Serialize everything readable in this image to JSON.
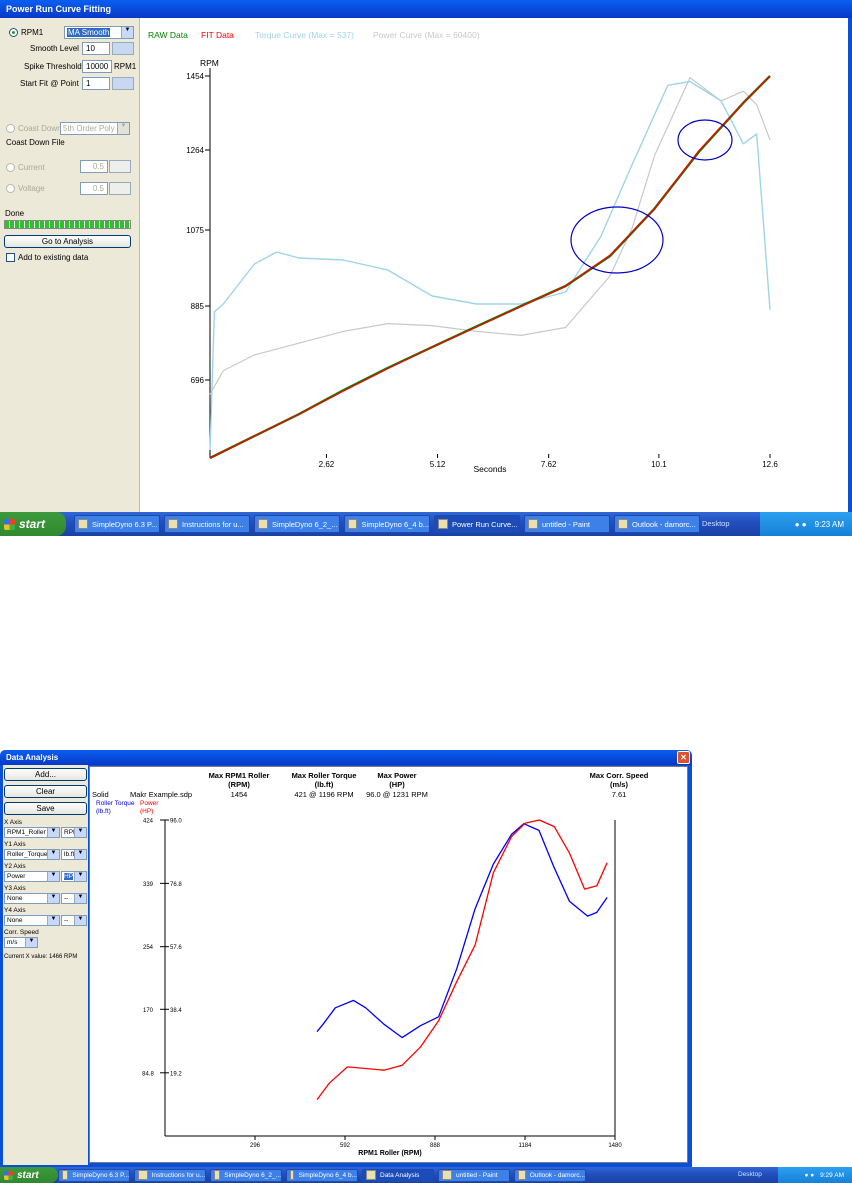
{
  "window1": {
    "title": "Power Run Curve Fitting",
    "rpm_label": "RPM1",
    "smoothing_select": "MA Smooth",
    "smooth_level_label": "Smooth Level",
    "smooth_level_value": "10",
    "spike_threshold_label": "Spike Threshold",
    "spike_threshold_value": "10000",
    "spike_threshold_unit": "RPM1",
    "start_fit_label": "Start Fit @ Point",
    "start_fit_value": "1",
    "coast_down_label": "Coast Down",
    "coast_down_select": "5th Order Poly",
    "coast_down_file_label": "Coast Down File",
    "current_label": "Current",
    "current_value": "0.5",
    "voltage_label": "Voltage",
    "voltage_value": "0.5",
    "status_text": "Done",
    "progress": 1.0,
    "go_button": "Go to Analysis",
    "add_existing_label": "Add to existing data",
    "legend_raw": "RAW Data",
    "legend_fit": "FIT Data",
    "legend_torque": "Torque Curve (Max = 537)",
    "legend_power": "Power Curve (Max = 60400)",
    "colors": {
      "raw": "#008000",
      "fit": "#ff0000",
      "torque": "#9fd4e8",
      "power": "#c8c8c8",
      "circle": "#0000cc"
    }
  },
  "taskbar1": {
    "start_label": "start",
    "items": [
      "SimpleDyno 6.3 P...",
      "Instructions for u...",
      "SimpleDyno 6_2_...",
      "SimpleDyno 6_4 b...",
      "Power Run Curve...",
      "untitled - Paint",
      "Outlook - damorc..."
    ],
    "active_index": 4,
    "desktop_label": "Desktop",
    "clock": "9:23 AM"
  },
  "window2": {
    "title": "Data Analysis",
    "buttons": {
      "add": "Add...",
      "clear": "Clear",
      "save": "Save"
    },
    "x_axis_label": "X Axis",
    "x_axis_select": "RPM1_Roller",
    "x_axis_unit": "RPM",
    "y1_axis_label": "Y1 Axis",
    "y1_axis_select": "Roller_Torque",
    "y1_axis_unit": "lb.ft",
    "y2_axis_label": "Y2 Axis",
    "y2_axis_select": "Power",
    "y2_axis_unit": "HP",
    "y3_axis_label": "Y3 Axis",
    "y3_axis_select": "None",
    "y3_axis_unit": "--",
    "y4_axis_label": "Y4 Axis",
    "y4_axis_select": "None",
    "y4_axis_unit": "--",
    "corr_speed_label": "Corr. Speed",
    "corr_speed_select": "m/s",
    "current_x_label": "Current X value:",
    "current_x_value": "1466 RPM",
    "table": {
      "col1_h1": "Max RPM1 Roller",
      "col1_h2": "(RPM)",
      "col1_v": "1454",
      "col2_h1": "Max Roller Torque",
      "col2_h2": "(lb.ft)",
      "col2_v": "421 @ 1196 RPM",
      "col3_h1": "Max Power",
      "col3_h2": "(HP)",
      "col3_v": "96.0 @ 1231 RPM",
      "col4_h1": "Max Corr. Speed",
      "col4_h2": "(m/s)",
      "col4_v": "7.61",
      "row_style": "Solid",
      "row_file": "Makr Example.sdp"
    },
    "y1_title": "Roller Torque",
    "y1_unit": "(lb.ft)",
    "y2_title": "Power",
    "y2_unit": "(HP)",
    "xlabel": "RPM1 Roller (RPM)",
    "colors": {
      "torque": "#0000ff",
      "power": "#ff0000"
    }
  },
  "taskbar2": {
    "start_label": "start",
    "items": [
      "SimpleDyno 6.3 P...",
      "Instructions for u...",
      "SimpleDyno 6_2_...",
      "SimpleDyno 6_4 b...",
      "Data Analysis",
      "untitled - Paint",
      "Outlook - damorc..."
    ],
    "active_index": 4,
    "desktop_label": "Desktop",
    "clock": "9:29 AM"
  },
  "chart_data": [
    {
      "type": "line",
      "title": "",
      "xlabel": "Seconds",
      "ylabel": "RPM",
      "xlim": [
        0,
        12.6
      ],
      "ylim": [
        500,
        1454
      ],
      "x_ticks": [
        "2.62",
        "5.12",
        "7.62",
        "10.1",
        "12.6"
      ],
      "y_ticks": [
        "1454",
        "1264",
        "1075",
        "885",
        "696"
      ],
      "series": [
        {
          "name": "RAW Data",
          "x": [
            0,
            1,
            2,
            3,
            4,
            5,
            6,
            7,
            8,
            9,
            10,
            11,
            12,
            12.6
          ],
          "y": [
            500,
            555,
            610,
            670,
            727,
            780,
            833,
            885,
            935,
            1010,
            1125,
            1260,
            1385,
            1454
          ]
        },
        {
          "name": "FIT Data",
          "x": [
            0,
            1,
            2,
            3,
            4,
            5,
            6,
            7,
            8,
            9,
            10,
            11,
            12,
            12.6
          ],
          "y": [
            500,
            555,
            610,
            668,
            725,
            780,
            832,
            884,
            935,
            1012,
            1125,
            1262,
            1385,
            1454
          ]
        },
        {
          "name": "Torque Curve (Max = 537)",
          "x": [
            0,
            0.1,
            0.3,
            1,
            1.5,
            2,
            3,
            4,
            5,
            6,
            7,
            8,
            8.8,
            9.5,
            10.3,
            10.8,
            11.5,
            12,
            12.3,
            12.6
          ],
          "y": [
            520,
            870,
            890,
            990,
            1020,
            1005,
            1000,
            975,
            910,
            890,
            890,
            920,
            1060,
            1230,
            1430,
            1440,
            1390,
            1280,
            1305,
            875
          ]
        },
        {
          "name": "Power Curve (Max = 60400)",
          "x": [
            0,
            0.3,
            1,
            2,
            3,
            4,
            5,
            6,
            7,
            8,
            9,
            9.5,
            10,
            10.8,
            11.5,
            12,
            12.3,
            12.6
          ],
          "y": [
            660,
            720,
            760,
            790,
            820,
            840,
            835,
            820,
            810,
            830,
            960,
            1080,
            1250,
            1450,
            1390,
            1415,
            1380,
            1290
          ]
        }
      ]
    },
    {
      "type": "line",
      "title": "",
      "xlabel": "RPM1 Roller (RPM)",
      "ylim_left": [
        0,
        424
      ],
      "ylim_right": [
        0,
        96
      ],
      "xlim": [
        0,
        1480
      ],
      "x_ticks": [
        "296",
        "592",
        "888",
        "1184",
        "1480"
      ],
      "y1_ticks": [
        "424",
        "339",
        "254",
        "170",
        "84.8"
      ],
      "y2_ticks": [
        "96.0",
        "76.8",
        "57.6",
        "38.4",
        "19.2"
      ],
      "series": [
        {
          "name": "Roller Torque",
          "axis": "left",
          "x": [
            500,
            520,
            560,
            620,
            660,
            720,
            780,
            840,
            900,
            960,
            1020,
            1080,
            1140,
            1180,
            1230,
            1280,
            1330,
            1390,
            1420,
            1454
          ],
          "y": [
            140,
            150,
            172,
            182,
            172,
            150,
            132,
            148,
            160,
            225,
            305,
            365,
            405,
            419,
            410,
            360,
            315,
            295,
            300,
            320
          ]
        },
        {
          "name": "Power",
          "axis": "right",
          "x": [
            500,
            540,
            600,
            660,
            720,
            780,
            840,
            900,
            960,
            1020,
            1080,
            1140,
            1184,
            1231,
            1280,
            1330,
            1380,
            1420,
            1454
          ],
          "y": [
            11,
            16,
            21,
            20.5,
            20,
            21.5,
            27,
            35,
            47,
            58,
            80,
            91,
            95,
            96,
            94,
            86,
            75,
            76,
            83
          ]
        }
      ]
    }
  ]
}
